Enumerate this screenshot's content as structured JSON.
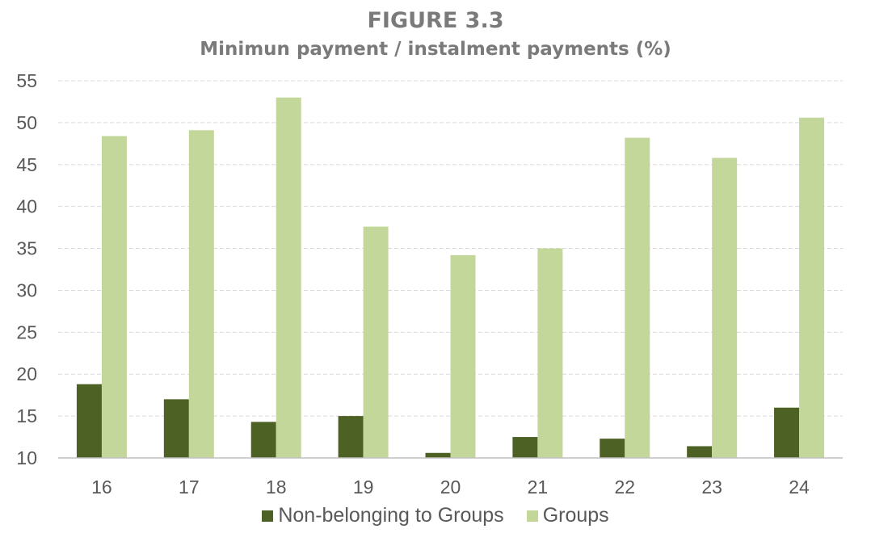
{
  "chart_data": {
    "type": "bar",
    "title": "FIGURE 3.3",
    "subtitle": "Minimun payment / instalment payments (%)",
    "categories": [
      "16",
      "17",
      "18",
      "19",
      "20",
      "21",
      "22",
      "23",
      "24"
    ],
    "series": [
      {
        "name": "Non-belonging to Groups",
        "color": "#4e6125",
        "values": [
          18.8,
          17.0,
          14.3,
          15.0,
          10.6,
          12.5,
          12.3,
          11.4,
          16.0
        ]
      },
      {
        "name": "Groups",
        "color": "#c4d79b",
        "values": [
          48.4,
          49.1,
          53.0,
          37.6,
          34.2,
          35.0,
          48.2,
          45.8,
          50.6
        ]
      }
    ],
    "ylim": [
      10,
      55
    ],
    "yticks": [
      10,
      15,
      20,
      25,
      30,
      35,
      40,
      45,
      50,
      55
    ],
    "grid": true,
    "legend_position": "bottom"
  }
}
